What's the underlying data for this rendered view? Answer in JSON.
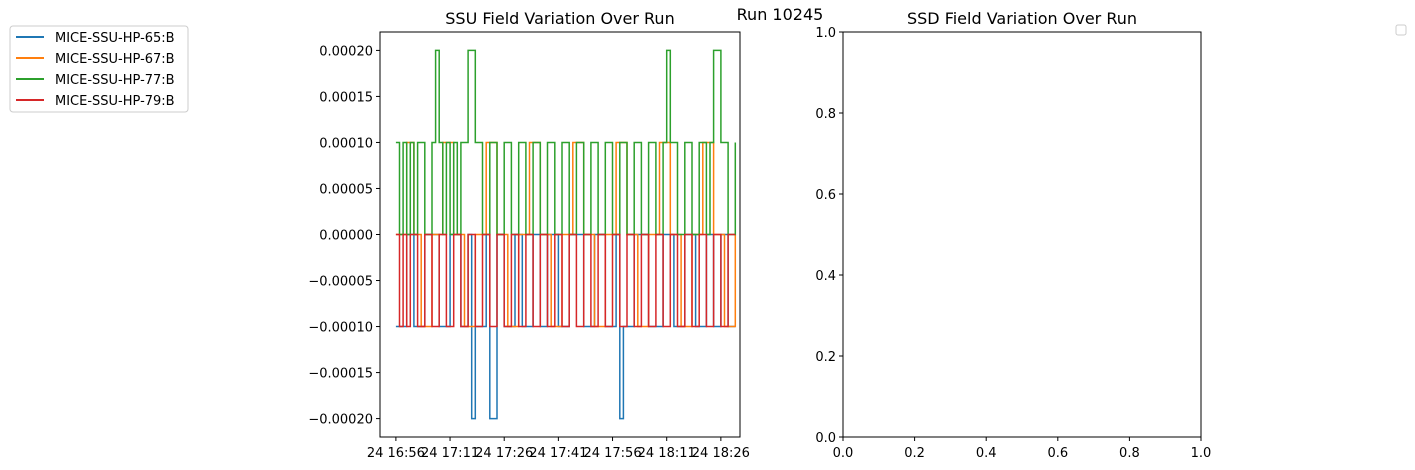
{
  "suptitle": "Run 10245",
  "chart_data": [
    {
      "type": "line",
      "title": "SSU Field Variation Over Run",
      "xlabel": "",
      "ylabel": "",
      "x_ticks": [
        "24 16:56",
        "24 17:11",
        "24 17:26",
        "24 17:41",
        "24 17:56",
        "24 18:11",
        "24 18:26"
      ],
      "x_tick_values": [
        0,
        15,
        30,
        45,
        60,
        75,
        90
      ],
      "xlim": [
        -4.4,
        95.3
      ],
      "y_ticks": [
        "0.00020",
        "0.00015",
        "0.00010",
        "0.00005",
        "0.00000",
        "−0.00005",
        "−0.00010",
        "−0.00015",
        "−0.00020"
      ],
      "y_tick_values": [
        0.0002,
        0.00015,
        0.0001,
        5e-05,
        0,
        -5e-05,
        -0.0001,
        -0.00015,
        -0.0002
      ],
      "ylim": [
        -0.00022,
        0.00022
      ],
      "legend_position": "outside-upper-left",
      "series": [
        {
          "name": "MICE-SSU-HP-65:B",
          "color": "#1f77b4",
          "x": [
            0,
            3,
            5,
            8,
            12,
            15,
            18,
            20,
            21,
            22,
            25,
            26,
            28,
            30,
            33,
            35,
            38,
            40,
            42,
            45,
            48,
            52,
            55,
            58,
            61,
            62,
            63,
            66,
            70,
            74,
            77,
            80,
            83,
            86,
            88,
            90,
            92,
            94
          ],
          "y": [
            -0.0001,
            0,
            -0.0001,
            0,
            -0.0001,
            0,
            -0.0001,
            0,
            -0.0002,
            -0.0001,
            0,
            -0.0002,
            0,
            -0.0001,
            0,
            -0.0001,
            0,
            -0.0001,
            0,
            -0.0001,
            0,
            -0.0001,
            0,
            -0.0001,
            0,
            -0.0002,
            -0.0001,
            0,
            -0.0001,
            0,
            -0.0001,
            0,
            -0.0001,
            0,
            -0.0001,
            0,
            -0.0001,
            -0.0001
          ]
        },
        {
          "name": "MICE-SSU-HP-67:B",
          "color": "#ff7f0e",
          "x": [
            0,
            3,
            5,
            7,
            10,
            13,
            16,
            19,
            22,
            25,
            28,
            31,
            34,
            37,
            40,
            43,
            46,
            49,
            52,
            55,
            58,
            61,
            64,
            67,
            70,
            73,
            76,
            79,
            82,
            85,
            88,
            91,
            94
          ],
          "y": [
            0,
            0.0001,
            0,
            -0.0001,
            0,
            0.0001,
            0,
            -0.0001,
            0,
            0.0001,
            0,
            -0.0001,
            0,
            0.0001,
            0,
            -0.0001,
            0,
            0.0001,
            0,
            -0.0001,
            0,
            0.0001,
            0,
            -0.0001,
            0,
            0.0001,
            0,
            -0.0001,
            0,
            0.0001,
            0,
            -0.0001,
            0
          ]
        },
        {
          "name": "MICE-SSU-HP-77:B",
          "color": "#2ca02c",
          "x": [
            0,
            1,
            2,
            3,
            4,
            5,
            6,
            8,
            10,
            11,
            12,
            13,
            14,
            15,
            16,
            17,
            18,
            20,
            22,
            24,
            26,
            28,
            30,
            32,
            34,
            36,
            38,
            40,
            42,
            44,
            46,
            48,
            50,
            52,
            54,
            56,
            58,
            60,
            62,
            64,
            66,
            68,
            70,
            72,
            74,
            75,
            76,
            78,
            80,
            82,
            84,
            86,
            87,
            88,
            90,
            92,
            94
          ],
          "y": [
            0.0001,
            0,
            0.0001,
            0,
            0.0001,
            0,
            0.0001,
            0,
            0.0001,
            0.0002,
            0.0001,
            0,
            0.0001,
            0,
            0.0001,
            0,
            0.0001,
            0.0002,
            0.0001,
            0,
            0.0001,
            0,
            0.0001,
            0,
            0.0001,
            0,
            0.0001,
            0,
            0.0001,
            0,
            0.0001,
            0,
            0.0001,
            0,
            0.0001,
            0,
            0.0001,
            0,
            0.0001,
            0,
            0.0001,
            0,
            0.0001,
            0,
            0.0001,
            0.0002,
            0.0001,
            0,
            0.0001,
            0,
            0.0001,
            0,
            0.0001,
            0.0002,
            0.0001,
            0,
            0.0001
          ]
        },
        {
          "name": "MICE-SSU-HP-79:B",
          "color": "#d62728",
          "x": [
            0,
            1,
            2,
            3,
            4,
            6,
            8,
            10,
            12,
            14,
            16,
            18,
            20,
            22,
            24,
            26,
            28,
            30,
            32,
            34,
            36,
            38,
            40,
            42,
            44,
            46,
            48,
            50,
            52,
            54,
            56,
            58,
            60,
            62,
            64,
            66,
            68,
            70,
            72,
            74,
            76,
            78,
            80,
            82,
            84,
            86,
            88,
            90,
            92,
            94
          ],
          "y": [
            0,
            -0.0001,
            0,
            -0.0001,
            0,
            -0.0001,
            0,
            -0.0001,
            0,
            -0.0001,
            0,
            -0.0001,
            0,
            -0.0001,
            0,
            -0.0001,
            0,
            -0.0001,
            0,
            -0.0001,
            0,
            -0.0001,
            0,
            -0.0001,
            0,
            -0.0001,
            0,
            -0.0001,
            0,
            -0.0001,
            0,
            -0.0001,
            0,
            -0.0001,
            0,
            -0.0001,
            0,
            -0.0001,
            0,
            -0.0001,
            0,
            -0.0001,
            0,
            -0.0001,
            0,
            -0.0001,
            0,
            -0.0001,
            0,
            0
          ]
        }
      ]
    },
    {
      "type": "line",
      "title": "SSD Field Variation Over Run",
      "xlabel": "",
      "ylabel": "",
      "x_ticks": [
        "0.0",
        "0.2",
        "0.4",
        "0.6",
        "0.8",
        "1.0"
      ],
      "x_tick_values": [
        0,
        0.2,
        0.4,
        0.6,
        0.8,
        1
      ],
      "xlim": [
        0,
        1
      ],
      "y_ticks": [
        "0.0",
        "0.2",
        "0.4",
        "0.6",
        "0.8",
        "1.0"
      ],
      "y_tick_values": [
        0,
        0.2,
        0.4,
        0.6,
        0.8,
        1
      ],
      "ylim": [
        0,
        1
      ],
      "legend_position": "outside-upper-right",
      "series": []
    }
  ]
}
